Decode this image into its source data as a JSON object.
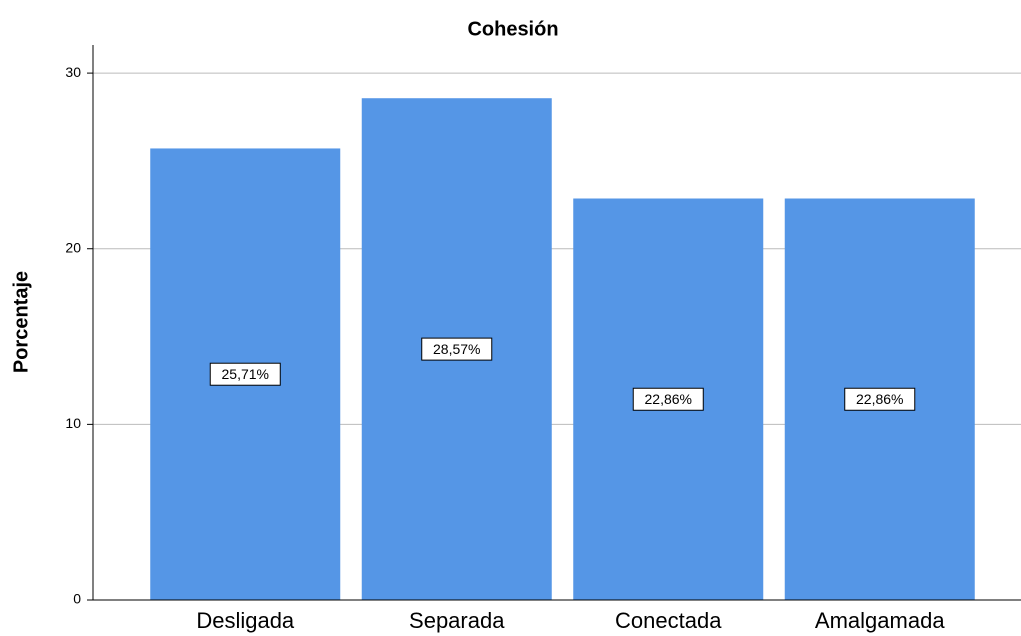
{
  "chart_data": {
    "type": "bar",
    "title": "Cohesión",
    "y_label": "Porcentaje",
    "categories": [
      "Desligada",
      "Separada",
      "Conectada",
      "Amalgamada"
    ],
    "values": [
      25.71,
      28.57,
      22.86,
      22.86
    ],
    "value_labels": [
      "25,71%",
      "28,57%",
      "22,86%",
      "22,86%"
    ],
    "color": "#5596e6",
    "ylim": [
      0,
      31.6
    ],
    "yticks": [
      0,
      10,
      20,
      30
    ],
    "grid": true
  }
}
